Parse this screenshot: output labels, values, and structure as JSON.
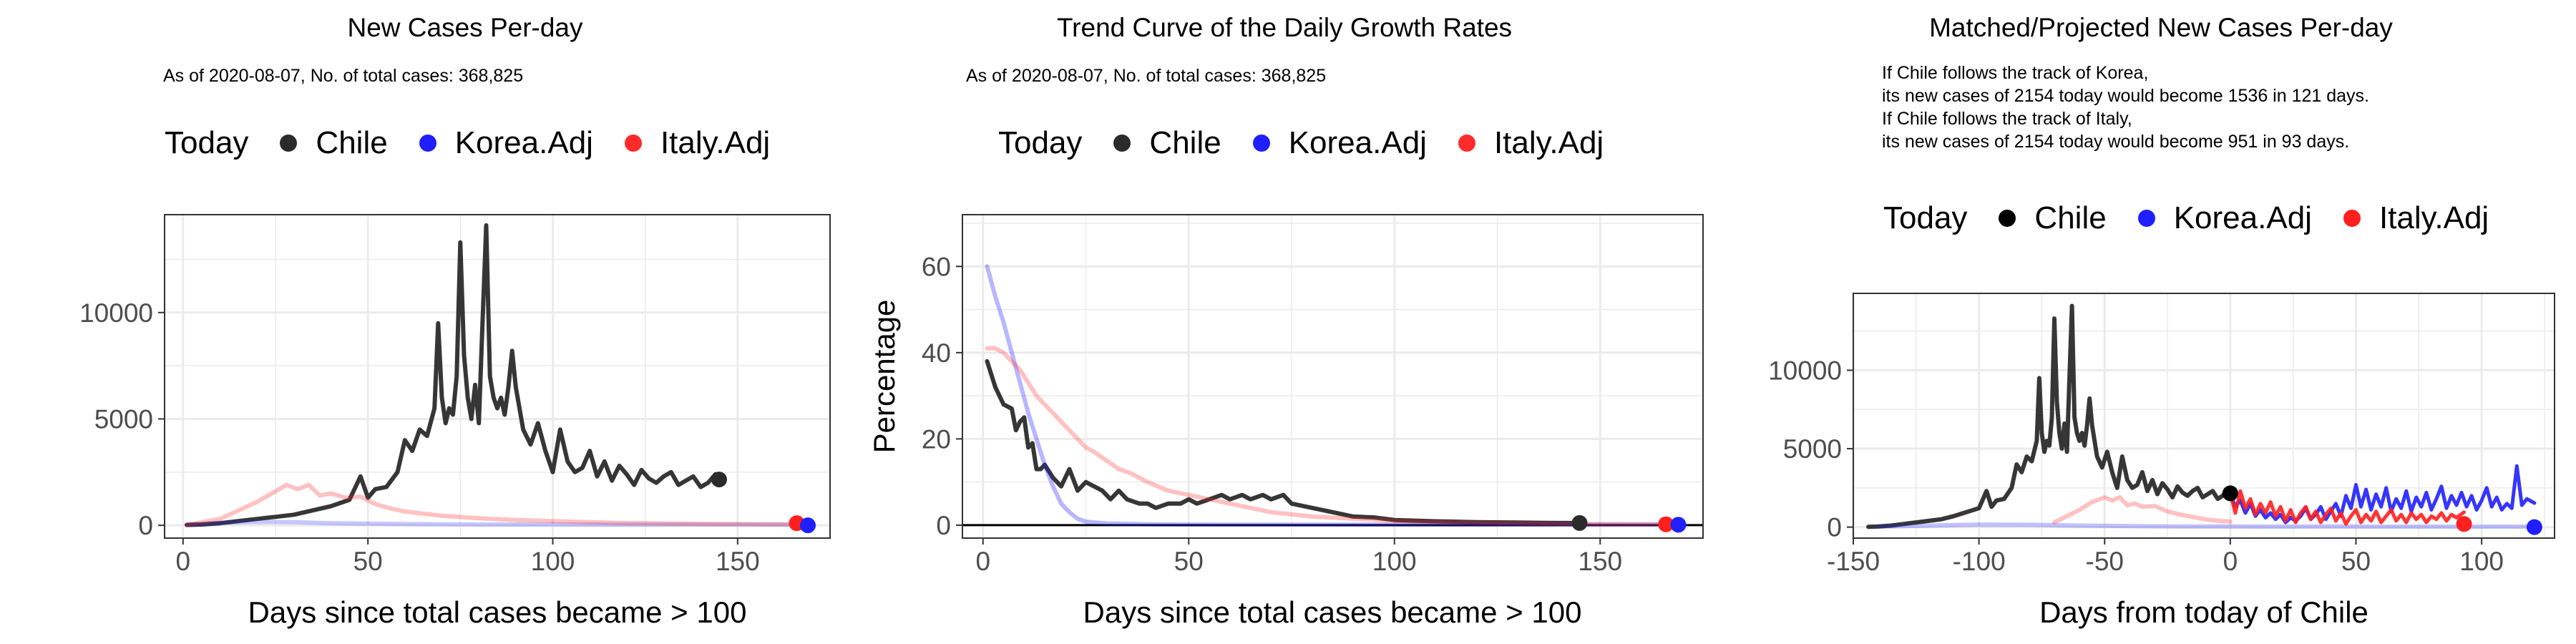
{
  "panels": [
    {
      "title": "New Cases Per-day",
      "subtitle": [
        "As of 2020-08-07, No. of total cases: 368,825"
      ],
      "legend": {
        "title": "Today",
        "items": [
          "Chile",
          "Korea.Adj",
          "Italy.Adj"
        ]
      }
    },
    {
      "title": "Trend Curve of the Daily Growth Rates",
      "subtitle": [
        "As of 2020-08-07, No. of total cases: 368,825"
      ],
      "legend": {
        "title": "Today",
        "items": [
          "Chile",
          "Korea.Adj",
          "Italy.Adj"
        ]
      }
    },
    {
      "title": "Matched/Projected New Cases Per-day",
      "subtitle": [
        "If Chile follows the track of Korea,",
        "its new cases of 2154 today would become 1536 in 121 days.",
        "If Chile follows the track of Italy,",
        "its new cases of 2154 today would become 951 in 93 days."
      ],
      "legend": {
        "title": "Today",
        "items": [
          "Chile",
          "Korea.Adj",
          "Italy.Adj"
        ]
      }
    }
  ],
  "colors": {
    "chile": "#2b2b2b",
    "korea": "#1f1fff",
    "italy": "#ff1f1f",
    "grid": "#ebebeb",
    "border": "#333333"
  },
  "chart_data": [
    {
      "type": "line",
      "title": "New Cases Per-day",
      "xlabel": "Days since total cases became > 100",
      "ylabel": "",
      "xlim": [
        -5,
        175
      ],
      "ylim": [
        -600,
        14600
      ],
      "xticks": [
        0,
        50,
        100,
        150
      ],
      "yticks": [
        0,
        5000,
        10000
      ],
      "series": [
        {
          "name": "Chile",
          "color": "#2b2b2b",
          "alpha": 0.95,
          "width": 6,
          "x": [
            1,
            5,
            10,
            15,
            20,
            25,
            30,
            35,
            40,
            45,
            48,
            50,
            52,
            55,
            58,
            60,
            62,
            64,
            66,
            68,
            69,
            70,
            71,
            72,
            73,
            74,
            75,
            76,
            77,
            78,
            79,
            80,
            81,
            82,
            83,
            84,
            85,
            86,
            87,
            88,
            89,
            90,
            92,
            94,
            96,
            98,
            100,
            102,
            104,
            106,
            108,
            110,
            112,
            114,
            116,
            118,
            120,
            122,
            124,
            126,
            128,
            130,
            132,
            134,
            136,
            138,
            140,
            142,
            144,
            145
          ],
          "y": [
            20,
            40,
            100,
            200,
            300,
            400,
            500,
            700,
            900,
            1200,
            2300,
            1300,
            1700,
            1800,
            2500,
            4000,
            3500,
            4500,
            4200,
            5500,
            9500,
            6000,
            4800,
            5500,
            5200,
            7000,
            13300,
            8000,
            6000,
            5000,
            6600,
            4800,
            9500,
            14100,
            7000,
            6000,
            5500,
            6000,
            5200,
            6500,
            8200,
            6500,
            4500,
            3800,
            4800,
            3500,
            2500,
            4500,
            3000,
            2500,
            2700,
            3500,
            2300,
            3000,
            2100,
            2800,
            2400,
            1900,
            2600,
            2200,
            2000,
            2300,
            2500,
            1900,
            2100,
            2300,
            1800,
            2000,
            2400,
            2154
          ]
        },
        {
          "name": "Korea.Adj",
          "color": "#1f1fff",
          "alpha": 0.25,
          "width": 6,
          "x": [
            1,
            10,
            20,
            30,
            40,
            60,
            80,
            100,
            120,
            140,
            160,
            168
          ],
          "y": [
            30,
            120,
            160,
            150,
            100,
            60,
            40,
            40,
            30,
            40,
            30,
            30
          ]
        },
        {
          "name": "Italy.Adj",
          "color": "#ff1f1f",
          "alpha": 0.28,
          "width": 6,
          "x": [
            1,
            10,
            15,
            20,
            25,
            28,
            31,
            34,
            37,
            40,
            44,
            48,
            52,
            56,
            60,
            70,
            80,
            90,
            100,
            110,
            120,
            130,
            140,
            150,
            160,
            166
          ],
          "y": [
            20,
            300,
            700,
            1100,
            1600,
            1900,
            1700,
            1900,
            1400,
            1500,
            1300,
            1350,
            1000,
            800,
            650,
            450,
            330,
            250,
            200,
            150,
            110,
            90,
            70,
            60,
            50,
            45
          ]
        }
      ],
      "today_points": [
        {
          "name": "Chile",
          "x": 145,
          "y": 2154,
          "color": "#2b2b2b"
        },
        {
          "name": "Italy.Adj",
          "x": 166,
          "y": 100,
          "color": "#ff1f1f"
        },
        {
          "name": "Korea.Adj",
          "x": 169,
          "y": 0,
          "color": "#1f1fff"
        }
      ]
    },
    {
      "type": "line",
      "title": "Trend Curve of the Daily Growth Rates",
      "xlabel": "Days since total cases became > 100",
      "ylabel": "Percentage",
      "xlim": [
        -5,
        175
      ],
      "ylim": [
        -3,
        72
      ],
      "xticks": [
        0,
        50,
        100,
        150
      ],
      "yticks": [
        0,
        20,
        40,
        60
      ],
      "hline": 0,
      "series": [
        {
          "name": "Chile",
          "color": "#2b2b2b",
          "alpha": 0.95,
          "width": 6,
          "x": [
            1,
            3,
            5,
            7,
            8,
            9,
            10,
            11,
            12,
            13,
            14,
            15,
            17,
            19,
            21,
            23,
            25,
            27,
            29,
            31,
            33,
            35,
            38,
            40,
            42,
            45,
            48,
            50,
            52,
            55,
            58,
            60,
            63,
            65,
            68,
            70,
            73,
            75,
            80,
            85,
            90,
            95,
            100,
            110,
            120,
            130,
            140,
            145
          ],
          "y": [
            38,
            32,
            28,
            27,
            22,
            24,
            25,
            18,
            19,
            13,
            13,
            14,
            11,
            9,
            13,
            8,
            10,
            9,
            8,
            6,
            8,
            6,
            5,
            5,
            4,
            5,
            5,
            6,
            5,
            6,
            7,
            6,
            7,
            6,
            7,
            6,
            7,
            5,
            4,
            3,
            2,
            1.8,
            1.2,
            0.9,
            0.7,
            0.6,
            0.5,
            0.5
          ]
        },
        {
          "name": "Korea.Adj",
          "color": "#1f1fff",
          "alpha": 0.32,
          "width": 6,
          "x": [
            1,
            3,
            5,
            7,
            9,
            11,
            13,
            15,
            17,
            19,
            21,
            23,
            25,
            30,
            40,
            60,
            80,
            100,
            120,
            140,
            160,
            169
          ],
          "y": [
            60,
            53,
            47,
            40,
            33,
            26,
            20,
            14,
            9,
            5,
            3,
            1.5,
            0.8,
            0.4,
            0.2,
            0.1,
            0.1,
            0.1,
            0.1,
            0.1,
            0.1,
            0.1
          ]
        },
        {
          "name": "Italy.Adj",
          "color": "#ff1f1f",
          "alpha": 0.28,
          "width": 6,
          "x": [
            1,
            3,
            5,
            7,
            9,
            11,
            13,
            15,
            17,
            19,
            21,
            23,
            25,
            27,
            30,
            33,
            36,
            40,
            45,
            50,
            55,
            60,
            70,
            80,
            90,
            100,
            120,
            140,
            166
          ],
          "y": [
            41,
            41,
            40,
            38,
            36,
            33,
            30,
            28,
            26,
            24,
            22,
            20,
            18,
            17,
            15,
            13,
            12,
            10,
            8,
            7,
            6,
            5,
            3,
            2,
            1.5,
            1,
            0.5,
            0.3,
            0.2
          ]
        }
      ],
      "today_points": [
        {
          "name": "Chile",
          "x": 145,
          "y": 0.5,
          "color": "#2b2b2b"
        },
        {
          "name": "Italy.Adj",
          "x": 166,
          "y": 0.2,
          "color": "#ff1f1f"
        },
        {
          "name": "Korea.Adj",
          "x": 169,
          "y": 0.1,
          "color": "#1f1fff"
        }
      ]
    },
    {
      "type": "line",
      "title": "Matched/Projected New Cases Per-day",
      "xlabel": "Days from today of Chile",
      "ylabel": "",
      "xlim": [
        -150,
        129
      ],
      "ylim": [
        -700,
        14900
      ],
      "xticks": [
        -150,
        -100,
        -50,
        0,
        50,
        100
      ],
      "yticks": [
        0,
        5000,
        10000
      ],
      "series": [
        {
          "name": "Chile",
          "color": "#2b2b2b",
          "alpha": 0.95,
          "width": 6,
          "x": [
            -144,
            -140,
            -135,
            -130,
            -125,
            -120,
            -115,
            -110,
            -100,
            -97,
            -95,
            -93,
            -90,
            -87,
            -85,
            -83,
            -81,
            -79,
            -77,
            -76,
            -75,
            -74,
            -73,
            -72,
            -71,
            -70,
            -69,
            -68,
            -67,
            -66,
            -65,
            -64,
            -63,
            -62,
            -61,
            -60,
            -59,
            -58,
            -57,
            -56,
            -55,
            -53,
            -51,
            -49,
            -47,
            -45,
            -43,
            -41,
            -39,
            -37,
            -35,
            -33,
            -31,
            -29,
            -27,
            -25,
            -23,
            -21,
            -19,
            -17,
            -15,
            -13,
            -11,
            -9,
            -7,
            -5,
            -3,
            -1,
            0
          ],
          "y": [
            20,
            40,
            100,
            200,
            300,
            400,
            500,
            700,
            1200,
            2300,
            1300,
            1700,
            1800,
            2500,
            4000,
            3500,
            4500,
            4200,
            5500,
            9500,
            6000,
            4800,
            5500,
            5200,
            7000,
            13300,
            8000,
            6000,
            5000,
            6600,
            4800,
            9500,
            14100,
            7000,
            6000,
            5500,
            6000,
            5200,
            6500,
            8200,
            6500,
            4500,
            3800,
            4800,
            3500,
            2500,
            4500,
            3000,
            2500,
            2700,
            3500,
            2300,
            3000,
            2100,
            2800,
            2400,
            1900,
            2600,
            2200,
            2000,
            2300,
            2500,
            1900,
            2100,
            2300,
            1800,
            2000,
            2400,
            2154
          ]
        },
        {
          "name": "Korea.Adj",
          "color": "#1f1fff",
          "alpha": 0.28,
          "width": 6,
          "x": [
            -140,
            -120,
            -100,
            -80,
            -60,
            -40,
            -20,
            0,
            20,
            40,
            60,
            80,
            100,
            121
          ],
          "y": [
            30,
            100,
            160,
            150,
            100,
            60,
            40,
            40,
            30,
            40,
            30,
            30,
            30,
            30
          ]
        },
        {
          "name": "Italy.Adj",
          "color": "#ff1f1f",
          "alpha": 0.28,
          "width": 6,
          "x": [
            -70,
            -65,
            -60,
            -55,
            -50,
            -47,
            -44,
            -41,
            -38,
            -35,
            -30,
            -25,
            -20,
            -15,
            -10,
            -5,
            0
          ],
          "y": [
            300,
            700,
            1100,
            1600,
            1900,
            1700,
            1900,
            1400,
            1500,
            1300,
            1350,
            1000,
            800,
            650,
            500,
            400,
            350
          ]
        },
        {
          "name": "Korea.Adj projected",
          "color": "#1f1fff",
          "alpha": 0.9,
          "width": 5,
          "x": [
            0,
            2,
            4,
            6,
            8,
            10,
            12,
            14,
            16,
            18,
            20,
            22,
            24,
            26,
            28,
            30,
            32,
            34,
            36,
            38,
            40,
            42,
            44,
            46,
            48,
            50,
            52,
            54,
            56,
            58,
            60,
            62,
            64,
            66,
            68,
            70,
            72,
            74,
            76,
            78,
            80,
            82,
            84,
            86,
            88,
            90,
            92,
            94,
            96,
            98,
            100,
            102,
            104,
            106,
            108,
            110,
            112,
            114,
            116,
            118,
            121
          ],
          "y": [
            2154,
            1300,
            1700,
            900,
            1500,
            700,
            1100,
            600,
            900,
            500,
            800,
            300,
            600,
            400,
            700,
            1200,
            500,
            800,
            1300,
            500,
            1000,
            1500,
            700,
            2000,
            1200,
            2700,
            1300,
            2400,
            1100,
            2100,
            1300,
            2500,
            1000,
            1800,
            1200,
            2300,
            1000,
            1900,
            1300,
            2200,
            1100,
            1800,
            2600,
            1200,
            2000,
            1400,
            2200,
            1300,
            2000,
            1100,
            1700,
            2500,
            1300,
            1900,
            1100,
            1500,
            1200,
            3900,
            1400,
            1800,
            1536
          ]
        },
        {
          "name": "Italy.Adj projected",
          "color": "#ff1f1f",
          "alpha": 0.9,
          "width": 5,
          "x": [
            0,
            2,
            4,
            6,
            8,
            10,
            12,
            14,
            16,
            18,
            20,
            22,
            24,
            26,
            28,
            30,
            32,
            34,
            36,
            38,
            40,
            42,
            44,
            46,
            48,
            50,
            52,
            54,
            56,
            58,
            60,
            62,
            64,
            66,
            68,
            70,
            72,
            74,
            76,
            78,
            80,
            82,
            84,
            86,
            88,
            90,
            93
          ],
          "y": [
            2154,
            900,
            2300,
            1200,
            1800,
            800,
            1500,
            900,
            1600,
            700,
            1300,
            400,
            1100,
            300,
            900,
            1300,
            500,
            1000,
            300,
            800,
            1200,
            400,
            900,
            200,
            700,
            1100,
            300,
            800,
            400,
            1000,
            300,
            700,
            1100,
            400,
            800,
            300,
            900,
            500,
            800,
            300,
            700,
            500,
            900,
            400,
            800,
            600,
            951
          ]
        }
      ],
      "today_points": [
        {
          "name": "Chile",
          "x": 0,
          "y": 2154,
          "color": "#000000"
        },
        {
          "name": "Italy.Adj",
          "x": 93,
          "y": 200,
          "color": "#ff1f1f"
        },
        {
          "name": "Korea.Adj",
          "x": 121,
          "y": 0,
          "color": "#1f1fff"
        }
      ]
    }
  ]
}
